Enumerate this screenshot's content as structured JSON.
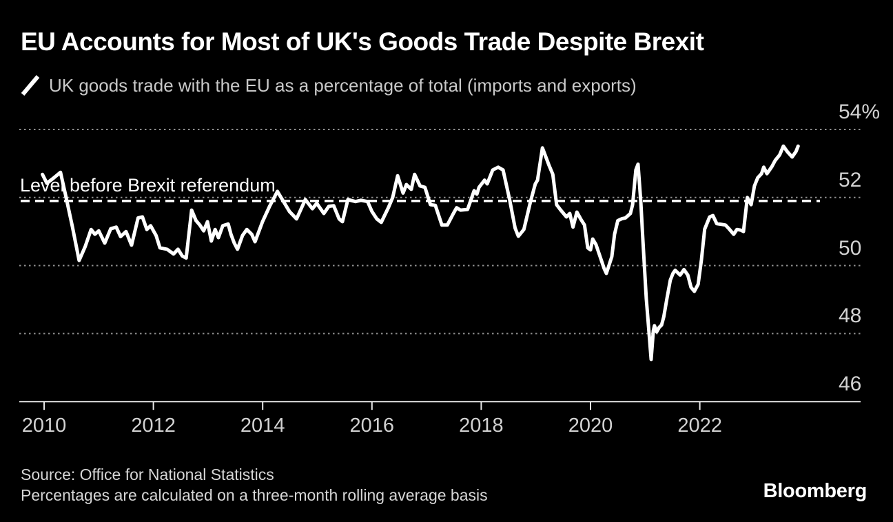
{
  "header": {
    "title": "EU Accounts for Most of UK's Goods Trade Despite Brexit",
    "legend_label": "UK goods trade with the EU as a percentage of total (imports and exports)"
  },
  "footer": {
    "source": "Source: Office for National Statistics",
    "note": "Percentages are calculated on a three-month rolling average basis",
    "logo": "Bloomberg"
  },
  "colors": {
    "background": "#000000",
    "title": "#ffffff",
    "subtitle": "#c9c9c9",
    "axis_labels": "#d2d2d2",
    "gridline": "#8f8f8f",
    "axis_line": "#e8e8e8",
    "series_line": "#ffffff",
    "reference_line": "#ffffff"
  },
  "chart_data": {
    "type": "line",
    "title": "EU Accounts for Most of UK's Goods Trade Despite Brexit",
    "subtitle": "UK goods trade with the EU as a percentage of total (imports and exports)",
    "unit": "%",
    "grid": "horizontal dotted",
    "legend_position": "top-left",
    "x_axis": {
      "tick_labels": [
        "2010",
        "2012",
        "2014",
        "2016",
        "2018",
        "2020",
        "2022"
      ],
      "tick_years": [
        2010,
        2012,
        2014,
        2016,
        2018,
        2020,
        2022
      ],
      "range_years": [
        2009.55,
        2024.95
      ]
    },
    "y_axis": {
      "tick_labels": [
        "54%",
        "52",
        "50",
        "48",
        "46"
      ],
      "tick_values": [
        54,
        52,
        50,
        48,
        46
      ],
      "ylim": [
        46,
        54
      ]
    },
    "reference_line": {
      "label": "Level before Brexit referendum",
      "value": 51.9,
      "style": "dashed-white"
    },
    "series": [
      {
        "name": "UK goods trade with the EU as a percentage of total (imports and exports)",
        "color": "#ffffff",
        "points": [
          [
            2009.97,
            52.68
          ],
          [
            2010.05,
            52.42
          ],
          [
            2010.18,
            52.58
          ],
          [
            2010.3,
            52.74
          ],
          [
            2010.39,
            52.1
          ],
          [
            2010.52,
            51.13
          ],
          [
            2010.64,
            50.15
          ],
          [
            2010.75,
            50.55
          ],
          [
            2010.86,
            51.06
          ],
          [
            2010.93,
            50.92
          ],
          [
            2011.0,
            51.02
          ],
          [
            2011.11,
            50.66
          ],
          [
            2011.22,
            51.08
          ],
          [
            2011.32,
            51.13
          ],
          [
            2011.4,
            50.85
          ],
          [
            2011.5,
            51.0
          ],
          [
            2011.6,
            50.6
          ],
          [
            2011.72,
            51.4
          ],
          [
            2011.8,
            51.43
          ],
          [
            2011.88,
            51.06
          ],
          [
            2011.95,
            51.17
          ],
          [
            2012.05,
            50.88
          ],
          [
            2012.12,
            50.52
          ],
          [
            2012.25,
            50.48
          ],
          [
            2012.37,
            50.34
          ],
          [
            2012.45,
            50.48
          ],
          [
            2012.53,
            50.28
          ],
          [
            2012.6,
            50.22
          ],
          [
            2012.7,
            51.63
          ],
          [
            2012.78,
            51.32
          ],
          [
            2012.85,
            51.19
          ],
          [
            2012.92,
            51.02
          ],
          [
            2012.99,
            51.29
          ],
          [
            2013.06,
            50.72
          ],
          [
            2013.13,
            51.06
          ],
          [
            2013.19,
            50.82
          ],
          [
            2013.27,
            51.17
          ],
          [
            2013.37,
            51.22
          ],
          [
            2013.42,
            50.92
          ],
          [
            2013.48,
            50.66
          ],
          [
            2013.54,
            50.48
          ],
          [
            2013.63,
            50.88
          ],
          [
            2013.71,
            51.06
          ],
          [
            2013.8,
            50.92
          ],
          [
            2013.86,
            50.7
          ],
          [
            2014.0,
            51.3
          ],
          [
            2014.13,
            51.75
          ],
          [
            2014.27,
            52.18
          ],
          [
            2014.36,
            51.94
          ],
          [
            2014.49,
            51.59
          ],
          [
            2014.62,
            51.37
          ],
          [
            2014.78,
            51.94
          ],
          [
            2014.91,
            51.67
          ],
          [
            2014.99,
            51.83
          ],
          [
            2015.12,
            51.53
          ],
          [
            2015.21,
            51.74
          ],
          [
            2015.3,
            51.76
          ],
          [
            2015.4,
            51.37
          ],
          [
            2015.46,
            51.29
          ],
          [
            2015.56,
            51.94
          ],
          [
            2015.7,
            51.88
          ],
          [
            2015.8,
            51.92
          ],
          [
            2015.92,
            51.88
          ],
          [
            2016.0,
            51.59
          ],
          [
            2016.09,
            51.37
          ],
          [
            2016.17,
            51.27
          ],
          [
            2016.3,
            51.7
          ],
          [
            2016.38,
            52.0
          ],
          [
            2016.47,
            52.64
          ],
          [
            2016.57,
            52.13
          ],
          [
            2016.63,
            52.38
          ],
          [
            2016.72,
            52.24
          ],
          [
            2016.78,
            52.68
          ],
          [
            2016.88,
            52.34
          ],
          [
            2016.97,
            52.3
          ],
          [
            2017.07,
            51.79
          ],
          [
            2017.16,
            51.77
          ],
          [
            2017.28,
            51.19
          ],
          [
            2017.38,
            51.19
          ],
          [
            2017.49,
            51.53
          ],
          [
            2017.55,
            51.7
          ],
          [
            2017.62,
            51.63
          ],
          [
            2017.75,
            51.65
          ],
          [
            2017.87,
            52.2
          ],
          [
            2017.92,
            52.1
          ],
          [
            2017.96,
            52.3
          ],
          [
            2018.06,
            52.51
          ],
          [
            2018.11,
            52.4
          ],
          [
            2018.21,
            52.81
          ],
          [
            2018.31,
            52.89
          ],
          [
            2018.4,
            52.81
          ],
          [
            2018.52,
            51.94
          ],
          [
            2018.62,
            51.1
          ],
          [
            2018.68,
            50.86
          ],
          [
            2018.78,
            51.06
          ],
          [
            2018.9,
            51.87
          ],
          [
            2018.99,
            52.4
          ],
          [
            2019.03,
            52.51
          ],
          [
            2019.12,
            53.46
          ],
          [
            2019.19,
            53.16
          ],
          [
            2019.24,
            52.95
          ],
          [
            2019.31,
            52.68
          ],
          [
            2019.38,
            51.79
          ],
          [
            2019.45,
            51.64
          ],
          [
            2019.56,
            51.43
          ],
          [
            2019.62,
            51.53
          ],
          [
            2019.68,
            51.13
          ],
          [
            2019.75,
            51.57
          ],
          [
            2019.82,
            51.37
          ],
          [
            2019.89,
            51.19
          ],
          [
            2019.95,
            50.52
          ],
          [
            2020.0,
            50.46
          ],
          [
            2020.04,
            50.78
          ],
          [
            2020.1,
            50.62
          ],
          [
            2020.25,
            49.91
          ],
          [
            2020.29,
            49.77
          ],
          [
            2020.39,
            50.26
          ],
          [
            2020.44,
            50.92
          ],
          [
            2020.5,
            51.32
          ],
          [
            2020.58,
            51.38
          ],
          [
            2020.64,
            51.4
          ],
          [
            2020.73,
            51.53
          ],
          [
            2020.77,
            51.79
          ],
          [
            2020.83,
            52.81
          ],
          [
            2020.87,
            52.98
          ],
          [
            2020.92,
            51.87
          ],
          [
            2020.96,
            50.72
          ],
          [
            2021.02,
            49.04
          ],
          [
            2021.07,
            48.03
          ],
          [
            2021.11,
            47.24
          ],
          [
            2021.15,
            48.09
          ],
          [
            2021.17,
            48.23
          ],
          [
            2021.21,
            48.05
          ],
          [
            2021.26,
            48.19
          ],
          [
            2021.3,
            48.25
          ],
          [
            2021.34,
            48.49
          ],
          [
            2021.4,
            49.04
          ],
          [
            2021.46,
            49.57
          ],
          [
            2021.51,
            49.77
          ],
          [
            2021.55,
            49.86
          ],
          [
            2021.64,
            49.72
          ],
          [
            2021.71,
            49.88
          ],
          [
            2021.78,
            49.72
          ],
          [
            2021.84,
            49.36
          ],
          [
            2021.9,
            49.24
          ],
          [
            2021.97,
            49.45
          ],
          [
            2022.03,
            50.17
          ],
          [
            2022.09,
            51.07
          ],
          [
            2022.18,
            51.43
          ],
          [
            2022.24,
            51.47
          ],
          [
            2022.31,
            51.23
          ],
          [
            2022.4,
            51.21
          ],
          [
            2022.47,
            51.19
          ],
          [
            2022.53,
            51.09
          ],
          [
            2022.62,
            50.92
          ],
          [
            2022.68,
            51.06
          ],
          [
            2022.75,
            51.04
          ],
          [
            2022.8,
            51.0
          ],
          [
            2022.87,
            52.0
          ],
          [
            2022.94,
            51.79
          ],
          [
            2023.0,
            52.34
          ],
          [
            2023.06,
            52.58
          ],
          [
            2023.13,
            52.7
          ],
          [
            2023.17,
            52.89
          ],
          [
            2023.23,
            52.7
          ],
          [
            2023.32,
            52.91
          ],
          [
            2023.38,
            53.09
          ],
          [
            2023.46,
            53.25
          ],
          [
            2023.53,
            53.51
          ],
          [
            2023.6,
            53.35
          ],
          [
            2023.69,
            53.19
          ],
          [
            2023.76,
            53.35
          ],
          [
            2023.8,
            53.51
          ]
        ]
      }
    ]
  }
}
